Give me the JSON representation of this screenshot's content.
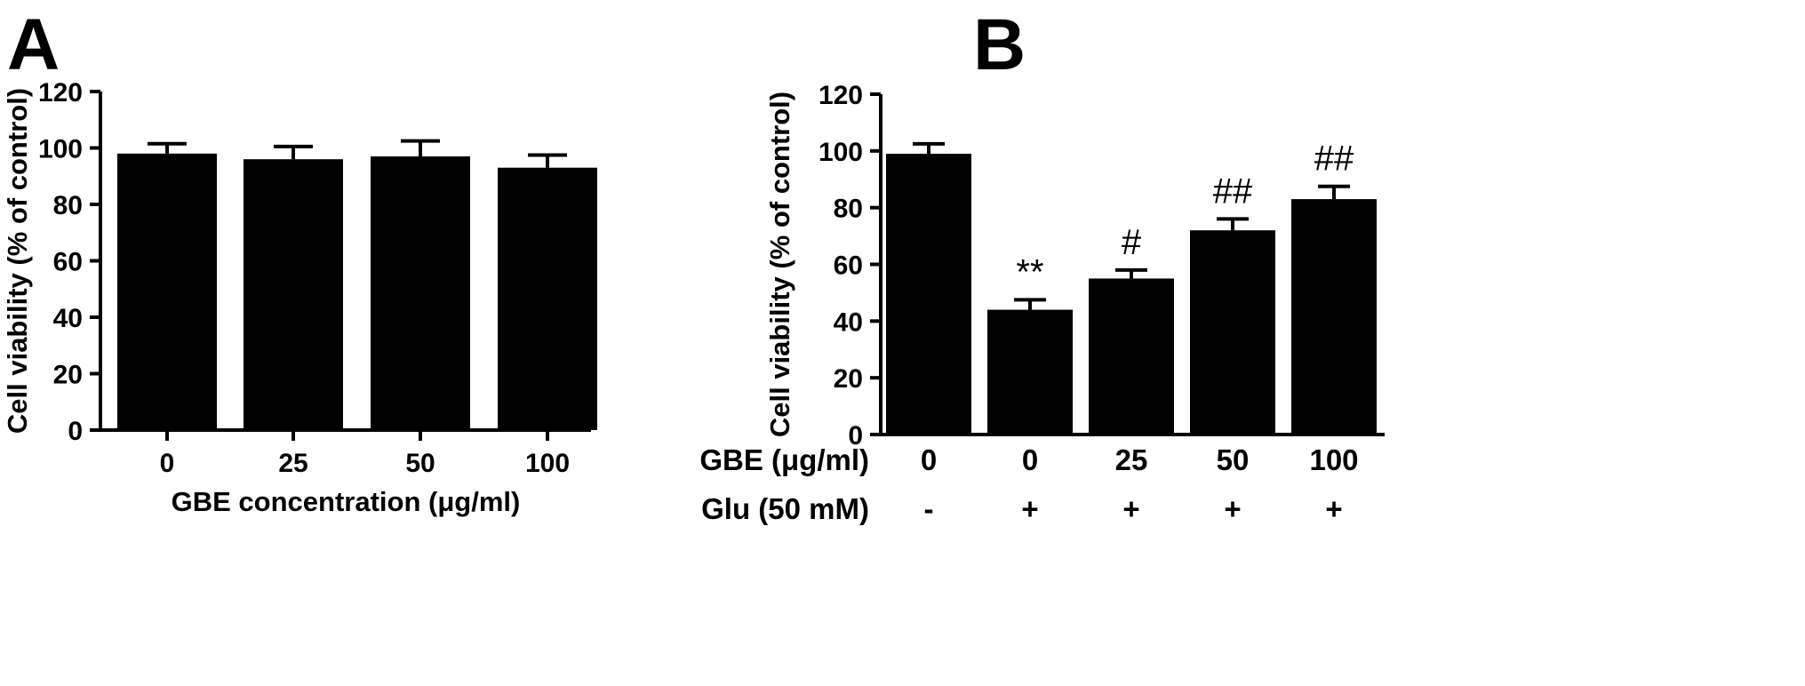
{
  "chart_data": [
    {
      "panel": "A",
      "type": "bar",
      "categories": [
        "0",
        "25",
        "50",
        "100"
      ],
      "values": [
        98,
        96,
        97,
        93
      ],
      "errors": [
        3.5,
        4.5,
        5.5,
        4.5
      ],
      "xlabel": "GBE concentration (μg/ml)",
      "ylabel": "Cell viability (% of control)",
      "ylim": [
        0,
        120
      ],
      "yticks": [
        "0",
        "20",
        "40",
        "60",
        "80",
        "100",
        "120"
      ],
      "bar_color": "#000000",
      "grid": false
    },
    {
      "panel": "B",
      "type": "bar",
      "categories": [
        "0",
        "0",
        "25",
        "50",
        "100"
      ],
      "values": [
        99,
        44,
        55,
        72,
        83
      ],
      "errors": [
        3.5,
        3.5,
        3.0,
        4.0,
        4.5
      ],
      "annotations": [
        "",
        "**",
        "#",
        "##",
        "##"
      ],
      "rows": [
        {
          "label": "GBE (μg/ml)",
          "values": [
            "0",
            "0",
            "25",
            "50",
            "100"
          ]
        },
        {
          "label": "Glu (50 mM)",
          "values": [
            "-",
            "+",
            "+",
            "+",
            "+"
          ]
        }
      ],
      "ylabel": "Cell viability (% of control)",
      "ylim": [
        0,
        120
      ],
      "yticks": [
        "0",
        "20",
        "40",
        "60",
        "80",
        "100",
        "120"
      ],
      "bar_color": "#000000",
      "grid": false
    }
  ],
  "panel_letters": [
    "A",
    "B"
  ]
}
